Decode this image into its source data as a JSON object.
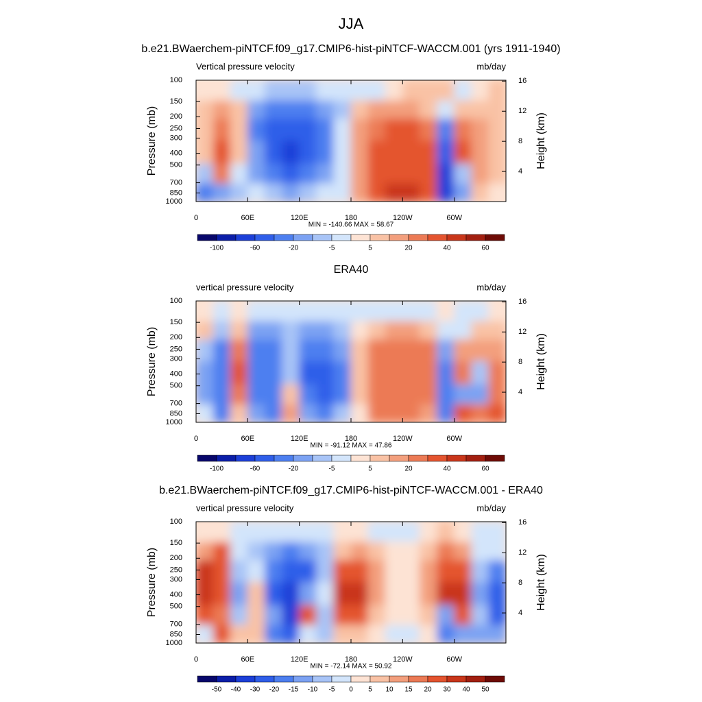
{
  "figure_title": "JJA",
  "chart_data": [
    {
      "type": "contour",
      "title": "b.e21.BWaerchem-piNTCF.f09_g17.CMIP6-hist-piNTCF-WACCM.001 (yrs 1911-1940)",
      "left_label": "Vertical pressure velocity",
      "right_label": "mb/day",
      "ylabel": "Pressure (mb)",
      "y2label": "Height (km)",
      "stats_label": "MIN = -140.66  MAX =  58.67",
      "x": [
        10,
        30,
        50,
        70,
        90,
        110,
        130,
        150,
        170,
        190,
        210,
        230,
        250,
        270,
        290,
        310,
        330,
        350
      ],
      "y": [
        125,
        175,
        250,
        400,
        600,
        850
      ],
      "values": [
        [
          3,
          3,
          -2,
          -5,
          -10,
          -10,
          -8,
          -5,
          -5,
          -3,
          -2,
          3,
          5,
          5,
          5,
          -2,
          3,
          5
        ],
        [
          8,
          10,
          5,
          -15,
          -40,
          -40,
          -35,
          -20,
          -8,
          5,
          10,
          12,
          12,
          8,
          -5,
          5,
          8,
          8
        ],
        [
          8,
          25,
          5,
          -25,
          -60,
          -60,
          -60,
          -30,
          -5,
          10,
          25,
          30,
          30,
          25,
          -40,
          25,
          10,
          5
        ],
        [
          5,
          30,
          5,
          -20,
          -60,
          -70,
          -60,
          -30,
          -3,
          15,
          35,
          35,
          35,
          30,
          -60,
          30,
          15,
          5
        ],
        [
          -10,
          20,
          -5,
          -15,
          -40,
          -50,
          -40,
          -20,
          -5,
          10,
          30,
          30,
          30,
          30,
          -70,
          -10,
          10,
          5
        ],
        [
          -30,
          -20,
          -8,
          -5,
          -10,
          -20,
          -10,
          -5,
          -3,
          10,
          35,
          45,
          45,
          35,
          -80,
          -20,
          5,
          3
        ]
      ],
      "xlim": [
        0,
        360
      ],
      "ylim": [
        1000,
        100
      ],
      "log_y": true,
      "xticks": [
        0,
        {
          "value": 60,
          "label": "60E"
        },
        {
          "value": 120,
          "label": "120E"
        },
        180,
        {
          "value": 240,
          "label": "120W"
        },
        {
          "value": 300,
          "label": "60W"
        }
      ],
      "yticks": [
        100,
        150,
        200,
        250,
        300,
        400,
        500,
        700,
        850,
        1000
      ],
      "y2lim": [
        0,
        16.12
      ],
      "y2ticks": [
        4,
        8,
        12,
        16
      ],
      "levels": [
        -100,
        -80,
        -60,
        -40,
        -20,
        -10,
        -5,
        0,
        5,
        10,
        20,
        30,
        40,
        50,
        60
      ],
      "colorbar_ticks": [
        -100,
        -60,
        -20,
        -5,
        5,
        20,
        40,
        60
      ],
      "colors": [
        "#08076b",
        "#0b1ea8",
        "#1c3fd8",
        "#2f5ee9",
        "#4d7ff0",
        "#7ca2f3",
        "#a8c4f7",
        "#d3e5fb",
        "#fde3d4",
        "#f9c2a5",
        "#f39f7d",
        "#ec7a55",
        "#e4542f",
        "#c9361a",
        "#a21f10",
        "#6e0b06"
      ]
    },
    {
      "type": "contour",
      "title": "ERA40",
      "left_label": "vertical pressure velocity",
      "right_label": "mb/day",
      "ylabel": "Pressure (mb)",
      "y2label": "Height (km)",
      "stats_label": "MIN = -91.12  MAX =  47.86",
      "x": [
        10,
        30,
        50,
        70,
        90,
        110,
        130,
        150,
        170,
        190,
        210,
        230,
        250,
        270,
        290,
        310,
        330,
        350
      ],
      "y": [
        125,
        175,
        250,
        400,
        600,
        850
      ],
      "values": [
        [
          3,
          -3,
          3,
          -3,
          -5,
          -3,
          -3,
          -5,
          -3,
          -2,
          -2,
          -2,
          -2,
          -2,
          3,
          -3,
          -2,
          3
        ],
        [
          5,
          -10,
          5,
          -15,
          -20,
          -10,
          -15,
          -20,
          -10,
          3,
          8,
          10,
          10,
          8,
          -5,
          -5,
          5,
          5
        ],
        [
          -10,
          -30,
          25,
          -30,
          -40,
          -10,
          -40,
          -40,
          -20,
          5,
          20,
          25,
          25,
          20,
          -20,
          15,
          10,
          10
        ],
        [
          -20,
          -40,
          35,
          -30,
          -40,
          -10,
          -45,
          -50,
          -30,
          5,
          25,
          25,
          25,
          20,
          -30,
          20,
          -10,
          20
        ],
        [
          -20,
          -40,
          20,
          -30,
          -40,
          5,
          -40,
          -50,
          -30,
          5,
          20,
          25,
          25,
          20,
          -40,
          -20,
          -15,
          20
        ],
        [
          -5,
          -40,
          5,
          -20,
          -30,
          10,
          -20,
          -30,
          -10,
          3,
          20,
          20,
          20,
          15,
          -40,
          30,
          20,
          30
        ]
      ],
      "xlim": [
        0,
        360
      ],
      "ylim": [
        1000,
        100
      ],
      "log_y": true,
      "xticks": [
        0,
        {
          "value": 60,
          "label": "60E"
        },
        {
          "value": 120,
          "label": "120E"
        },
        180,
        {
          "value": 240,
          "label": "120W"
        },
        {
          "value": 300,
          "label": "60W"
        }
      ],
      "yticks": [
        100,
        150,
        200,
        250,
        300,
        400,
        500,
        700,
        850,
        1000
      ],
      "y2lim": [
        0,
        16.12
      ],
      "y2ticks": [
        4,
        8,
        12,
        16
      ],
      "levels": [
        -100,
        -80,
        -60,
        -40,
        -20,
        -10,
        -5,
        0,
        5,
        10,
        20,
        30,
        40,
        50,
        60
      ],
      "colorbar_ticks": [
        -100,
        -60,
        -20,
        -5,
        5,
        20,
        40,
        60
      ],
      "colors": [
        "#08076b",
        "#0b1ea8",
        "#1c3fd8",
        "#2f5ee9",
        "#4d7ff0",
        "#7ca2f3",
        "#a8c4f7",
        "#d3e5fb",
        "#fde3d4",
        "#f9c2a5",
        "#f39f7d",
        "#ec7a55",
        "#e4542f",
        "#c9361a",
        "#a21f10",
        "#6e0b06"
      ]
    },
    {
      "type": "contour",
      "title": "b.e21.BWaerchem-piNTCF.f09_g17.CMIP6-hist-piNTCF-WACCM.001 - ERA40",
      "left_label": "vertical pressure velocity",
      "right_label": "mb/day",
      "ylabel": "Pressure (mb)",
      "y2label": "Height (km)",
      "stats_label": "MIN = -72.14  MAX =  50.92",
      "x": [
        10,
        30,
        50,
        70,
        90,
        110,
        130,
        150,
        170,
        190,
        210,
        230,
        250,
        270,
        290,
        310,
        330,
        350
      ],
      "y": [
        125,
        175,
        250,
        400,
        600,
        850
      ],
      "values": [
        [
          3,
          3,
          -2,
          -2,
          -5,
          -5,
          -3,
          -2,
          3,
          3,
          -2,
          -2,
          -2,
          2,
          5,
          3,
          -3,
          -5
        ],
        [
          10,
          20,
          -5,
          -10,
          -15,
          -20,
          -15,
          -10,
          8,
          10,
          5,
          2,
          2,
          5,
          15,
          10,
          -5,
          -5
        ],
        [
          30,
          20,
          -10,
          -5,
          -20,
          -30,
          -25,
          -10,
          20,
          25,
          10,
          3,
          3,
          10,
          25,
          20,
          -10,
          -20
        ],
        [
          35,
          25,
          -15,
          5,
          -25,
          -40,
          -15,
          -5,
          30,
          30,
          10,
          3,
          3,
          10,
          30,
          30,
          -15,
          -25
        ],
        [
          25,
          15,
          -10,
          5,
          -15,
          -35,
          20,
          -10,
          20,
          20,
          8,
          2,
          2,
          5,
          -15,
          20,
          -10,
          -25
        ],
        [
          -5,
          20,
          5,
          5,
          -20,
          -30,
          -5,
          -10,
          5,
          5,
          2,
          -2,
          -2,
          3,
          -20,
          -15,
          -15,
          -15
        ]
      ],
      "xlim": [
        0,
        360
      ],
      "ylim": [
        1000,
        100
      ],
      "log_y": true,
      "xticks": [
        0,
        {
          "value": 60,
          "label": "60E"
        },
        {
          "value": 120,
          "label": "120E"
        },
        180,
        {
          "value": 240,
          "label": "120W"
        },
        {
          "value": 300,
          "label": "60W"
        }
      ],
      "yticks": [
        100,
        150,
        200,
        250,
        300,
        400,
        500,
        700,
        850,
        1000
      ],
      "y2lim": [
        0,
        16.12
      ],
      "y2ticks": [
        4,
        8,
        12,
        16
      ],
      "levels": [
        -50,
        -40,
        -30,
        -20,
        -15,
        -10,
        -5,
        0,
        5,
        10,
        15,
        20,
        30,
        40,
        50
      ],
      "colorbar_ticks": [
        -50,
        -40,
        -30,
        -20,
        -15,
        -10,
        -5,
        0,
        5,
        10,
        15,
        20,
        30,
        40,
        50
      ],
      "colors": [
        "#08076b",
        "#0b1ea8",
        "#1c3fd8",
        "#2f5ee9",
        "#4d7ff0",
        "#7ca2f3",
        "#a8c4f7",
        "#d3e5fb",
        "#fde3d4",
        "#f9c2a5",
        "#f39f7d",
        "#ec7a55",
        "#e4542f",
        "#c9361a",
        "#a21f10",
        "#6e0b06"
      ]
    }
  ]
}
